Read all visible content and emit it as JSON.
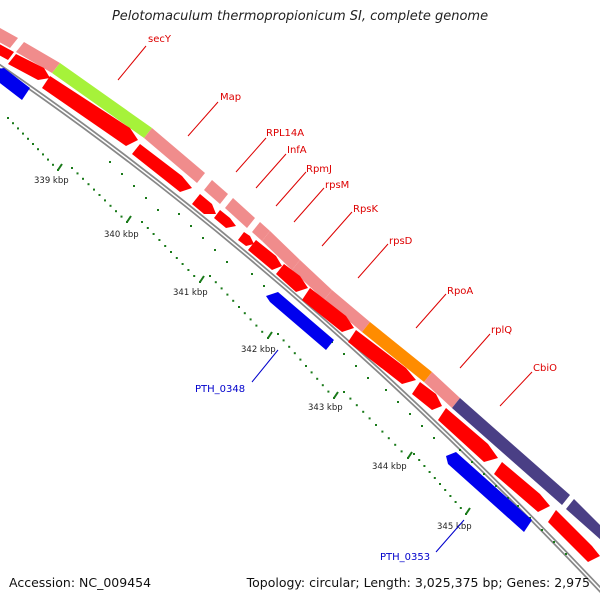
{
  "title": "Pelotomaculum thermopropionicum SI, complete genome",
  "footer": {
    "accession": "Accession: NC_009454",
    "summary": "Topology: circular; Length: 3,025,375 bp; Genes: 2,975"
  },
  "ticks": [
    "339 kbp",
    "340 kbp",
    "341 kbp",
    "342 kbp",
    "343 kbp",
    "344 kbp",
    "345 kbp"
  ],
  "genes": {
    "top": [
      "secY",
      "Map",
      "RPL14A",
      "InfA",
      "RpmJ",
      "rpsM",
      "RpsK",
      "rpsD",
      "RpoA",
      "rplQ",
      "CbiO"
    ],
    "bottom": [
      "PTH_0348",
      "PTH_0353"
    ]
  },
  "colors": {
    "cds": "#ff0000",
    "gene_pink": "#f08c8c",
    "secY": "#a6f23a",
    "rpoA": "#ff8c00",
    "cbiO": "#4a3f85",
    "reverse_strand": "#0000ee",
    "label_red": "#dd0000",
    "label_blue": "#0000cc",
    "tick": "#1a7a1a",
    "backbone": "#888888"
  }
}
